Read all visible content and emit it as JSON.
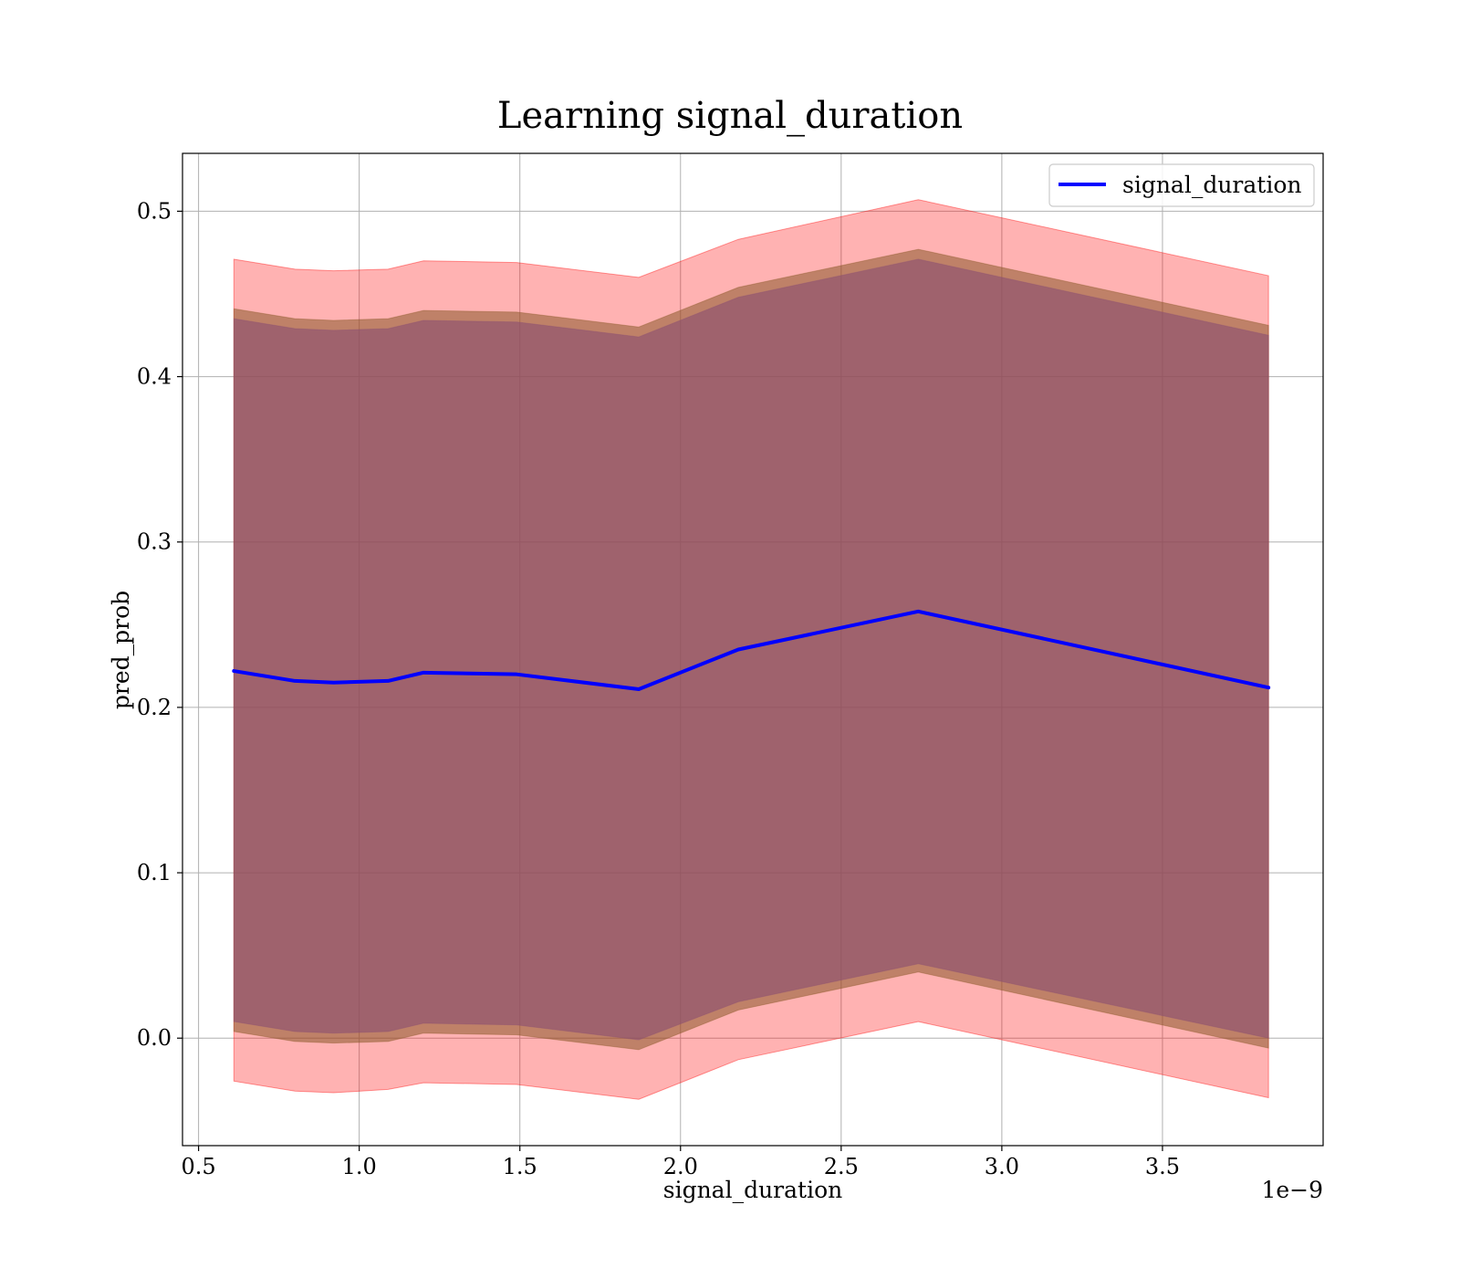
{
  "chart_data": {
    "type": "area",
    "title": "Learning signal_duration",
    "xlabel": "signal_duration",
    "ylabel": "pred_prob",
    "x_offset_label": "1e−9",
    "xlim": [
      0.45,
      4.0
    ],
    "ylim": [
      -0.065,
      0.535
    ],
    "xticks": [
      0.5,
      1.0,
      1.5,
      2.0,
      2.5,
      3.0,
      3.5
    ],
    "xtick_labels": [
      "0.5",
      "1.0",
      "1.5",
      "2.0",
      "2.5",
      "3.0",
      "3.5"
    ],
    "yticks": [
      0.0,
      0.1,
      0.2,
      0.3,
      0.4,
      0.5
    ],
    "ytick_labels": [
      "0.0",
      "0.1",
      "0.2",
      "0.3",
      "0.4",
      "0.5"
    ],
    "grid": true,
    "legend_position": "top-right",
    "x": [
      0.61,
      0.8,
      0.92,
      1.09,
      1.2,
      1.49,
      1.87,
      2.18,
      2.74,
      3.83
    ],
    "series": [
      {
        "name": "signal_duration",
        "color": "#0000ff",
        "values": [
          0.222,
          0.216,
          0.215,
          0.216,
          0.221,
          0.22,
          0.211,
          0.235,
          0.258,
          0.212
        ]
      }
    ],
    "bands": [
      {
        "color": "#ff0000",
        "opacity": 0.3,
        "upper": [
          0.471,
          0.465,
          0.464,
          0.465,
          0.47,
          0.469,
          0.46,
          0.483,
          0.507,
          0.461
        ],
        "lower": [
          -0.026,
          -0.032,
          -0.033,
          -0.031,
          -0.027,
          -0.028,
          -0.037,
          -0.013,
          0.01,
          -0.036
        ]
      },
      {
        "color": "#8b5a2b",
        "opacity": 0.55,
        "upper": [
          0.441,
          0.435,
          0.434,
          0.435,
          0.44,
          0.439,
          0.43,
          0.454,
          0.477,
          0.431
        ],
        "lower": [
          0.004,
          -0.002,
          -0.003,
          -0.002,
          0.003,
          0.002,
          -0.007,
          0.017,
          0.04,
          -0.006
        ]
      },
      {
        "color": "#8b4f72",
        "opacity": 0.6,
        "upper": [
          0.435,
          0.429,
          0.428,
          0.429,
          0.434,
          0.433,
          0.424,
          0.448,
          0.471,
          0.425
        ],
        "lower": [
          0.01,
          0.004,
          0.003,
          0.004,
          0.009,
          0.008,
          -0.001,
          0.022,
          0.045,
          0.0
        ]
      }
    ]
  }
}
